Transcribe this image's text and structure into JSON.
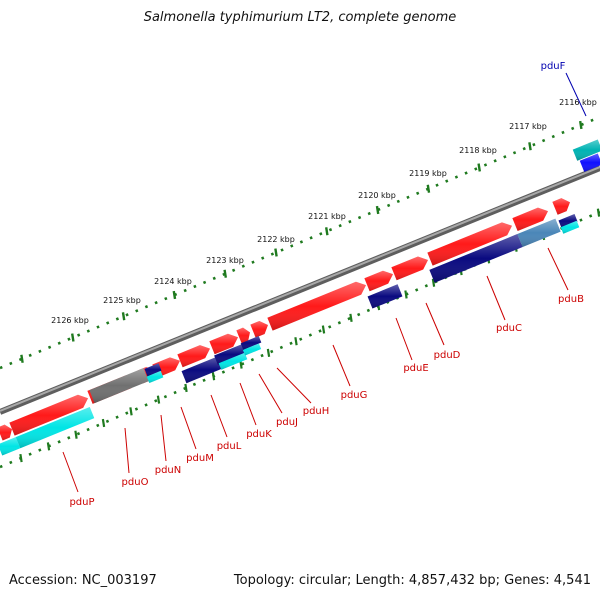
{
  "title": "Salmonella typhimurium LT2, complete genome",
  "accession": "Accession: NC_003197",
  "summary": "Topology: circular; Length: 4,857,432 bp; Genes: 4,541",
  "colors": {
    "backbone": "#808080",
    "tick": "#1f7a1f",
    "forward": "#ff1a1a",
    "reverse_dark": "#0a0a80",
    "reverse_blue": "#1010ff",
    "cyan": "#00e5e5",
    "teal": "#00b3b3",
    "steel": "#4a86b8",
    "gray_gene": "#707070",
    "label_red": "#cc0000",
    "label_blue": "#0000b0"
  },
  "ruler": [
    {
      "label": "2116 kbp"
    },
    {
      "label": "2117 kbp"
    },
    {
      "label": "2118 kbp"
    },
    {
      "label": "2119 kbp"
    },
    {
      "label": "2120 kbp"
    },
    {
      "label": "2121 kbp"
    },
    {
      "label": "2122 kbp"
    },
    {
      "label": "2123 kbp"
    },
    {
      "label": "2124 kbp"
    },
    {
      "label": "2125 kbp"
    },
    {
      "label": "2126 kbp"
    }
  ],
  "genes": [
    {
      "label": "pduF",
      "color": "label_blue"
    },
    {
      "label": "pduB",
      "color": "label_red"
    },
    {
      "label": "pduC",
      "color": "label_red"
    },
    {
      "label": "pduD",
      "color": "label_red"
    },
    {
      "label": "pduE",
      "color": "label_red"
    },
    {
      "label": "pduG",
      "color": "label_red"
    },
    {
      "label": "pduH",
      "color": "label_red"
    },
    {
      "label": "pduJ",
      "color": "label_red"
    },
    {
      "label": "pduK",
      "color": "label_red"
    },
    {
      "label": "pduL",
      "color": "label_red"
    },
    {
      "label": "pduM",
      "color": "label_red"
    },
    {
      "label": "pduN",
      "color": "label_red"
    },
    {
      "label": "pduO",
      "color": "label_red"
    },
    {
      "label": "pduP",
      "color": "label_red"
    }
  ]
}
